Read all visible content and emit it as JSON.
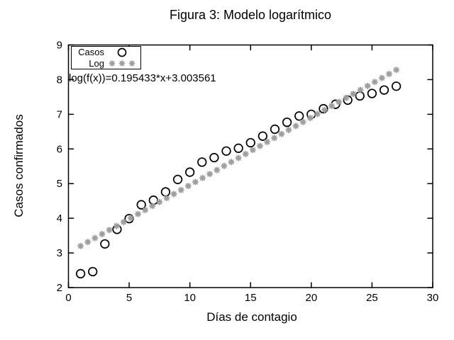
{
  "figure": {
    "title": "Figura 3: Modelo logarítmico",
    "xlabel": "Días de contagio",
    "ylabel": "Casos confirmados",
    "annotation": "log(f(x))=0.195433*x+3.003561",
    "background_color": "#ffffff",
    "axis_color": "#000000"
  },
  "legend": {
    "position": "top-left",
    "entries": [
      {
        "label": "Casos",
        "marker": "open-circle",
        "color": "#000000"
      },
      {
        "label": "Log",
        "marker": "asterisk",
        "color": "#9e9e9e"
      }
    ]
  },
  "chart_data": {
    "type": "scatter",
    "title": "Figura 3: Modelo logarítmico",
    "xlabel": "Días de contagio",
    "ylabel": "Casos confirmados",
    "xlim": [
      0,
      30
    ],
    "ylim": [
      2,
      9
    ],
    "x_ticks": [
      0,
      5,
      10,
      15,
      20,
      25,
      30
    ],
    "y_ticks": [
      2,
      3,
      4,
      5,
      6,
      7,
      8,
      9
    ],
    "grid": false,
    "legend_position": "top-left",
    "annotation": "log(f(x))=0.195433*x+3.003561",
    "series": [
      {
        "name": "Casos",
        "marker": "open-circle",
        "color": "#000000",
        "x": [
          1,
          2,
          3,
          4,
          5,
          6,
          7,
          8,
          9,
          10,
          11,
          12,
          13,
          14,
          15,
          16,
          17,
          18,
          19,
          20,
          21,
          22,
          23,
          24,
          25,
          26,
          27
        ],
        "y": [
          2.4,
          2.46,
          3.26,
          3.68,
          3.99,
          4.39,
          4.52,
          4.76,
          5.12,
          5.33,
          5.62,
          5.75,
          5.94,
          6.02,
          6.18,
          6.37,
          6.57,
          6.77,
          6.95,
          7.0,
          7.16,
          7.29,
          7.41,
          7.53,
          7.6,
          7.7,
          7.81
        ]
      },
      {
        "name": "Log",
        "marker": "asterisk",
        "color": "#9e9e9e",
        "fit": {
          "slope": 0.195433,
          "intercept": 3.003561,
          "x_start": 1,
          "x_end": 27,
          "n_points": 45
        }
      }
    ]
  }
}
